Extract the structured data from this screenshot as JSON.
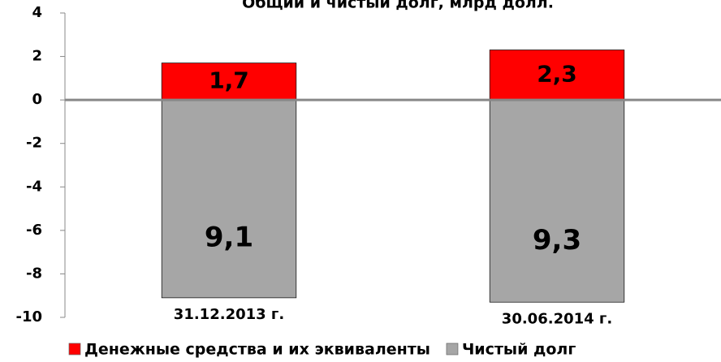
{
  "chart_data": {
    "type": "bar",
    "stacked": true,
    "title": "Общий и чистый долг, млрд долл.",
    "categories": [
      "31.12.2013 г.",
      "30.06.2014 г."
    ],
    "series": [
      {
        "name": "Денежные средства и их эквиваленты",
        "color": "#ff0000",
        "values": [
          1.7,
          2.3
        ],
        "value_labels": [
          "1,7",
          "2,3"
        ]
      },
      {
        "name": "Чистый долг",
        "color": "#a6a6a6",
        "values": [
          -9.1,
          -9.3
        ],
        "value_labels": [
          "9,1",
          "9,3"
        ]
      }
    ],
    "ylim": [
      -10,
      4
    ],
    "yticks": [
      -10,
      -8,
      -6,
      -4,
      -2,
      0,
      2,
      4
    ],
    "legend": "bottom"
  }
}
